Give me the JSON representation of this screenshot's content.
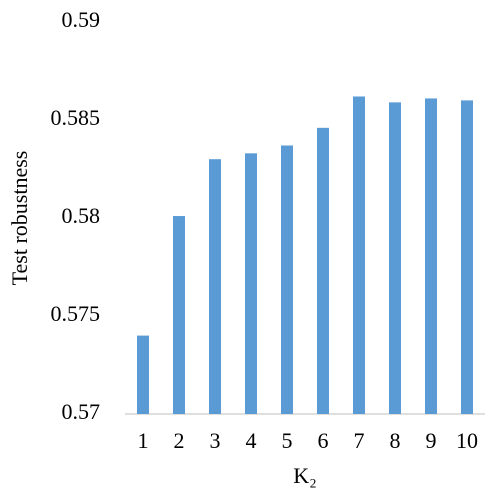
{
  "chart_data": {
    "type": "bar",
    "y_label": "Test robustness",
    "x_label": "K₂",
    "categories": [
      "1",
      "2",
      "3",
      "4",
      "5",
      "6",
      "7",
      "8",
      "9",
      "10"
    ],
    "values": [
      0.574,
      0.5801,
      0.583,
      0.5833,
      0.5837,
      0.5846,
      0.5862,
      0.5859,
      0.5861,
      0.586
    ],
    "color": "#5b9bd5",
    "ylim": [
      0.57,
      0.59
    ],
    "yticks": [
      0.57,
      0.575,
      0.58,
      0.585,
      0.59
    ],
    "grid": false
  }
}
